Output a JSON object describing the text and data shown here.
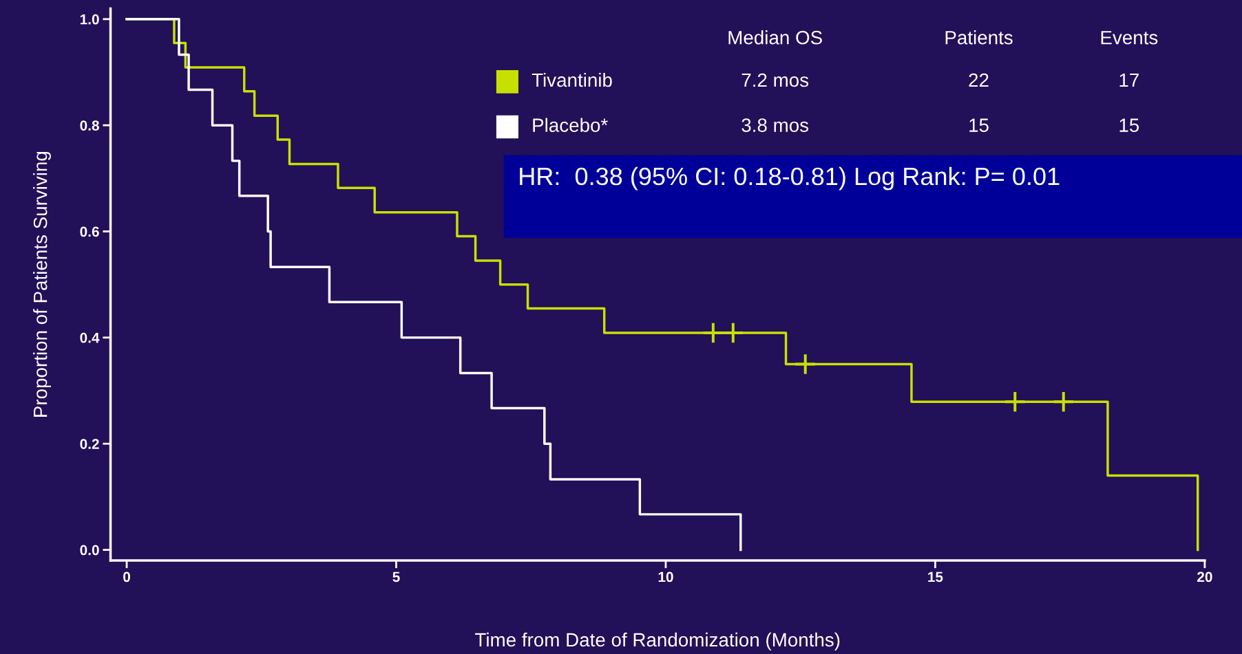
{
  "chart_data": {
    "type": "step",
    "xlabel": "Time from Date of Randomization (Months)",
    "ylabel": "Proportion of Patients Surviving",
    "xlim": [
      -0.3,
      20
    ],
    "ylim": [
      -0.02,
      1.02
    ],
    "xticks": [
      0,
      5,
      10,
      15,
      20
    ],
    "yticks": [
      {
        "value": 0,
        "label": "0.0"
      },
      {
        "value": 0.2,
        "label": "0.2"
      },
      {
        "value": 0.4,
        "label": "0.4"
      },
      {
        "value": 0.6,
        "label": "0.6"
      },
      {
        "value": 0.8,
        "label": "0.8"
      },
      {
        "value": 1,
        "label": "1.0"
      }
    ],
    "grid": false,
    "legend": "top",
    "series": [
      {
        "name": "Tivantinib",
        "color": "#c8e000",
        "x": [
          0,
          0.88,
          1.09,
          2.18,
          2.37,
          2.8,
          3.02,
          3.92,
          4.6,
          6.13,
          6.47,
          6.93,
          7.44,
          8.86,
          12.23,
          14.56,
          18.2,
          19.87
        ],
        "values": [
          1,
          0.955,
          0.909,
          0.864,
          0.818,
          0.773,
          0.727,
          0.682,
          0.636,
          0.591,
          0.545,
          0.5,
          0.455,
          0.409,
          0.35,
          0.279,
          0.14,
          0.0
        ]
      },
      {
        "name": "Placebo*",
        "color": "#ffffff",
        "x": [
          0,
          0.97,
          1.15,
          1.59,
          1.96,
          2.09,
          2.62,
          2.67,
          3.76,
          5.1,
          6.19,
          6.77,
          7.75,
          7.86,
          9.52,
          11.39
        ],
        "values": [
          1,
          0.933,
          0.867,
          0.8,
          0.733,
          0.667,
          0.6,
          0.533,
          0.467,
          0.4,
          0.333,
          0.267,
          0.2,
          0.133,
          0.067,
          0.0
        ]
      },
      {
        "type": "scatter",
        "marker": "cross",
        "color": "#c8e000",
        "x": [
          10.88,
          11.25,
          12.59,
          16.48,
          17.38
        ],
        "values": [
          0.409,
          0.409,
          0.35,
          0.279,
          0.279
        ]
      }
    ],
    "annotations": [
      "Median OS",
      "Patients",
      "Events",
      "7.2 mos",
      "22",
      "17",
      "3.8 mos",
      "15",
      "15",
      "HR:  0.38 (95% CI: 0.18-0.81) Log Rank: P= 0.01"
    ]
  }
}
